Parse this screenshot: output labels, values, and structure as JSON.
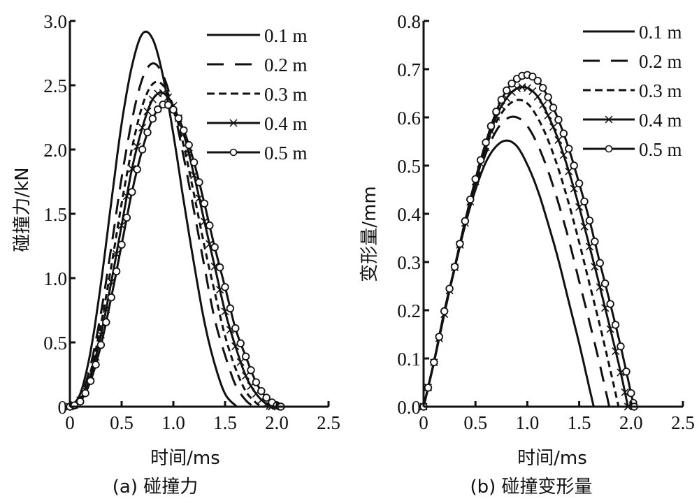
{
  "chart_data": [
    {
      "type": "line",
      "panel": "a",
      "title": "",
      "caption": "(a) 碰撞力",
      "xlabel": "时间/ms",
      "ylabel": "碰撞力/kN",
      "xlim": [
        0,
        2.5
      ],
      "ylim": [
        0,
        3.0
      ],
      "xticks": [
        "0",
        "0.5",
        "1.0",
        "1.5",
        "2.0",
        "2.5"
      ],
      "xtick_values": [
        0,
        0.5,
        1.0,
        1.5,
        2.0,
        2.5
      ],
      "yticks": [
        "0",
        "0.5",
        "1.0",
        "1.5",
        "2.0",
        "2.5",
        "3.0"
      ],
      "ytick_values": [
        0,
        0.5,
        1.0,
        1.5,
        2.0,
        2.5,
        3.0
      ],
      "grid": false,
      "legend_position": "top-right",
      "series": [
        {
          "name": "0.1 m",
          "style": "solid",
          "marker": "none",
          "x": [
            0,
            0.1,
            0.2,
            0.3,
            0.4,
            0.5,
            0.6,
            0.7,
            0.8,
            0.9,
            1.0,
            1.1,
            1.2,
            1.3,
            1.4,
            1.5,
            1.6,
            1.62
          ],
          "y": [
            0,
            0.1,
            0.43,
            0.96,
            1.59,
            2.2,
            2.65,
            2.9,
            2.86,
            2.57,
            2.12,
            1.6,
            1.11,
            0.66,
            0.33,
            0.1,
            0.01,
            0
          ]
        },
        {
          "name": "0.2 m",
          "style": "long-dash",
          "marker": "none",
          "x": [
            0,
            0.1,
            0.2,
            0.3,
            0.4,
            0.5,
            0.6,
            0.7,
            0.8,
            0.9,
            1.0,
            1.1,
            1.2,
            1.3,
            1.4,
            1.5,
            1.6,
            1.7,
            1.78
          ],
          "y": [
            0,
            0.07,
            0.32,
            0.73,
            1.24,
            1.78,
            2.23,
            2.55,
            2.67,
            2.58,
            2.32,
            1.94,
            1.52,
            1.09,
            0.68,
            0.4,
            0.17,
            0.05,
            0
          ]
        },
        {
          "name": "0.3 m",
          "style": "short-dash",
          "marker": "none",
          "x": [
            0,
            0.1,
            0.2,
            0.3,
            0.4,
            0.5,
            0.6,
            0.7,
            0.8,
            0.9,
            1.0,
            1.1,
            1.2,
            1.3,
            1.4,
            1.5,
            1.6,
            1.7,
            1.8,
            1.86
          ],
          "y": [
            0,
            0.06,
            0.27,
            0.64,
            1.09,
            1.58,
            2.01,
            2.34,
            2.51,
            2.5,
            2.33,
            2.03,
            1.65,
            1.25,
            0.89,
            0.55,
            0.3,
            0.12,
            0.03,
            0
          ]
        },
        {
          "name": "0.4 m",
          "style": "solid",
          "marker": "cross",
          "x": [
            0,
            0.1,
            0.2,
            0.3,
            0.4,
            0.5,
            0.6,
            0.7,
            0.8,
            0.9,
            1.0,
            1.1,
            1.2,
            1.3,
            1.4,
            1.5,
            1.6,
            1.7,
            1.8,
            1.9,
            1.95
          ],
          "y": [
            0,
            0.05,
            0.24,
            0.56,
            0.97,
            1.41,
            1.85,
            2.17,
            2.39,
            2.44,
            2.34,
            2.12,
            1.8,
            1.44,
            1.09,
            0.74,
            0.47,
            0.24,
            0.1,
            0.02,
            0
          ]
        },
        {
          "name": "0.5 m",
          "style": "solid",
          "marker": "circle",
          "x": [
            0,
            0.1,
            0.2,
            0.3,
            0.4,
            0.5,
            0.6,
            0.7,
            0.8,
            0.9,
            1.0,
            1.1,
            1.2,
            1.3,
            1.4,
            1.5,
            1.6,
            1.7,
            1.8,
            1.9,
            2.0,
            2.04
          ],
          "y": [
            0,
            0.04,
            0.2,
            0.48,
            0.85,
            1.26,
            1.67,
            2.0,
            2.24,
            2.35,
            2.31,
            2.15,
            1.9,
            1.58,
            1.24,
            0.93,
            0.61,
            0.39,
            0.19,
            0.07,
            0.01,
            0
          ]
        }
      ]
    },
    {
      "type": "line",
      "panel": "b",
      "title": "",
      "caption": "(b) 碰撞变形量",
      "xlabel": "时间/ms",
      "ylabel": "变形量/mm",
      "xlim": [
        0,
        2.5
      ],
      "ylim": [
        0,
        0.8
      ],
      "xticks": [
        "0",
        "0.5",
        "1.0",
        "1.5",
        "2.0",
        "2.5"
      ],
      "xtick_values": [
        0,
        0.5,
        1.0,
        1.5,
        2.0,
        2.5
      ],
      "yticks": [
        "0.0",
        "0.1",
        "0.2",
        "0.3",
        "0.4",
        "0.5",
        "0.6",
        "0.7",
        "0.8"
      ],
      "ytick_values": [
        0,
        0.1,
        0.2,
        0.3,
        0.4,
        0.5,
        0.6,
        0.7,
        0.8
      ],
      "grid": false,
      "legend_position": "top-right",
      "series": [
        {
          "name": "0.1 m",
          "style": "solid",
          "marker": "none",
          "x": [
            0,
            0.1,
            0.2,
            0.3,
            0.4,
            0.5,
            0.6,
            0.7,
            0.8,
            0.9,
            1.0,
            1.1,
            1.2,
            1.3,
            1.4,
            1.5,
            1.6,
            1.64
          ],
          "y": [
            0,
            0.094,
            0.195,
            0.287,
            0.376,
            0.45,
            0.507,
            0.54,
            0.552,
            0.54,
            0.502,
            0.449,
            0.38,
            0.304,
            0.217,
            0.131,
            0.037,
            0
          ]
        },
        {
          "name": "0.2 m",
          "style": "long-dash",
          "marker": "none",
          "x": [
            0,
            0.1,
            0.2,
            0.3,
            0.4,
            0.5,
            0.6,
            0.7,
            0.8,
            0.9,
            1.0,
            1.1,
            1.2,
            1.3,
            1.4,
            1.5,
            1.6,
            1.7,
            1.79
          ],
          "y": [
            0,
            0.093,
            0.195,
            0.287,
            0.378,
            0.458,
            0.525,
            0.572,
            0.597,
            0.6,
            0.582,
            0.543,
            0.489,
            0.422,
            0.346,
            0.26,
            0.175,
            0.086,
            0
          ]
        },
        {
          "name": "0.3 m",
          "style": "short-dash",
          "marker": "none",
          "x": [
            0,
            0.1,
            0.2,
            0.3,
            0.4,
            0.5,
            0.6,
            0.7,
            0.8,
            0.9,
            1.0,
            1.1,
            1.2,
            1.3,
            1.4,
            1.5,
            1.6,
            1.7,
            1.8,
            1.88
          ],
          "y": [
            0,
            0.093,
            0.197,
            0.29,
            0.383,
            0.465,
            0.537,
            0.59,
            0.622,
            0.636,
            0.629,
            0.599,
            0.553,
            0.493,
            0.421,
            0.341,
            0.254,
            0.168,
            0.076,
            0
          ]
        },
        {
          "name": "0.4 m",
          "style": "solid",
          "marker": "cross",
          "x": [
            0,
            0.1,
            0.2,
            0.3,
            0.4,
            0.5,
            0.6,
            0.7,
            0.8,
            0.9,
            1.0,
            1.1,
            1.2,
            1.3,
            1.4,
            1.5,
            1.6,
            1.7,
            1.8,
            1.9,
            1.97
          ],
          "y": [
            0,
            0.092,
            0.192,
            0.289,
            0.381,
            0.467,
            0.538,
            0.601,
            0.64,
            0.66,
            0.661,
            0.643,
            0.604,
            0.553,
            0.488,
            0.414,
            0.332,
            0.248,
            0.161,
            0.071,
            0
          ]
        },
        {
          "name": "0.5 m",
          "style": "solid",
          "marker": "circle",
          "x": [
            0,
            0.1,
            0.2,
            0.3,
            0.4,
            0.5,
            0.6,
            0.7,
            0.8,
            0.9,
            1.0,
            1.1,
            1.2,
            1.3,
            1.4,
            1.5,
            1.6,
            1.7,
            1.8,
            1.9,
            2.0,
            2.03
          ],
          "y": [
            0,
            0.092,
            0.198,
            0.29,
            0.385,
            0.472,
            0.548,
            0.612,
            0.656,
            0.68,
            0.688,
            0.676,
            0.642,
            0.595,
            0.535,
            0.463,
            0.386,
            0.298,
            0.213,
            0.125,
            0.028,
            0
          ]
        }
      ]
    }
  ]
}
